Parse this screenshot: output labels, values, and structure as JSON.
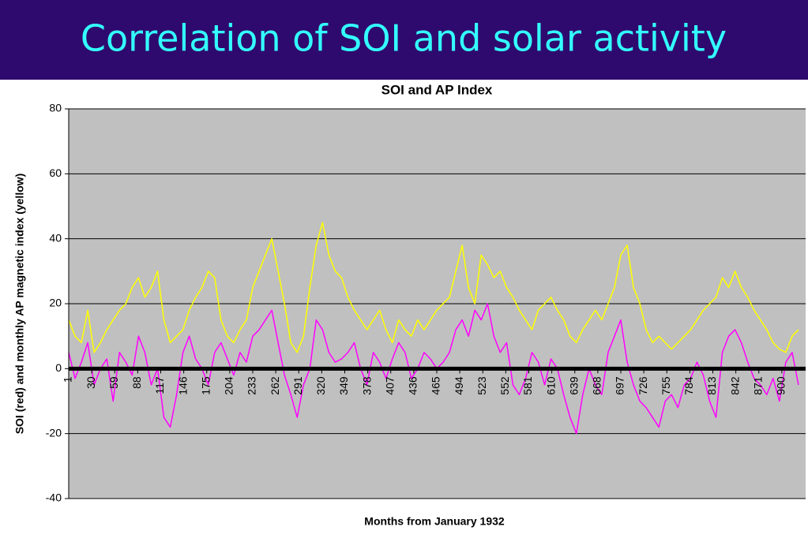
{
  "slide_title": "Correlation of SOI and solar activity",
  "chart_data": {
    "type": "line",
    "title": "SOI and AP Index",
    "x_label": "Months from January 1932",
    "y_label": "SOI (red) and monthly AP magnetic index (yellow)",
    "x": [
      1,
      9,
      17,
      25,
      33,
      41,
      49,
      57,
      65,
      73,
      81,
      89,
      97,
      105,
      113,
      121,
      129,
      137,
      145,
      153,
      161,
      169,
      177,
      185,
      193,
      201,
      209,
      217,
      225,
      233,
      241,
      249,
      257,
      265,
      273,
      281,
      289,
      297,
      305,
      313,
      321,
      329,
      337,
      345,
      353,
      361,
      369,
      377,
      385,
      393,
      401,
      409,
      417,
      425,
      433,
      441,
      449,
      457,
      465,
      473,
      481,
      489,
      497,
      505,
      513,
      521,
      529,
      537,
      545,
      553,
      561,
      569,
      577,
      585,
      593,
      601,
      609,
      617,
      625,
      633,
      641,
      649,
      657,
      665,
      673,
      681,
      689,
      697,
      705,
      713,
      721,
      729,
      737,
      745,
      753,
      761,
      769,
      777,
      785,
      793,
      801,
      809,
      817,
      825,
      833,
      841,
      849,
      857,
      865,
      873,
      881,
      889,
      897,
      905,
      913,
      921
    ],
    "xlim": [
      1,
      930
    ],
    "xticks": [
      1,
      30,
      59,
      88,
      117,
      146,
      175,
      204,
      233,
      262,
      291,
      320,
      349,
      378,
      407,
      436,
      465,
      494,
      523,
      552,
      581,
      610,
      639,
      668,
      697,
      726,
      755,
      784,
      813,
      842,
      871,
      900
    ],
    "ylim": [
      -40,
      80
    ],
    "yticks": [
      -40,
      -20,
      0,
      20,
      40,
      60,
      80
    ],
    "grid": true,
    "series": [
      {
        "name": "AP",
        "color": "#ffff00",
        "values": [
          15,
          10,
          8,
          18,
          5,
          8,
          12,
          15,
          18,
          20,
          25,
          28,
          22,
          25,
          30,
          15,
          8,
          10,
          12,
          18,
          22,
          25,
          30,
          28,
          15,
          10,
          8,
          12,
          15,
          25,
          30,
          35,
          40,
          30,
          20,
          8,
          5,
          10,
          25,
          38,
          45,
          35,
          30,
          28,
          22,
          18,
          15,
          12,
          15,
          18,
          12,
          8,
          15,
          12,
          10,
          15,
          12,
          15,
          18,
          20,
          22,
          30,
          38,
          25,
          20,
          35,
          32,
          28,
          30,
          25,
          22,
          18,
          15,
          12,
          18,
          20,
          22,
          18,
          15,
          10,
          8,
          12,
          15,
          18,
          15,
          20,
          25,
          35,
          38,
          25,
          20,
          12,
          8,
          10,
          8,
          6,
          8,
          10,
          12,
          15,
          18,
          20,
          22,
          28,
          25,
          30,
          25,
          22,
          18,
          15,
          12,
          8,
          6,
          5,
          10,
          12
        ]
      },
      {
        "name": "SOI",
        "color": "#ff00ff",
        "values": [
          5,
          -3,
          2,
          8,
          -5,
          0,
          3,
          -10,
          5,
          2,
          -2,
          10,
          5,
          -5,
          0,
          -15,
          -18,
          -8,
          5,
          10,
          3,
          0,
          -5,
          5,
          8,
          3,
          -2,
          5,
          2,
          10,
          12,
          15,
          18,
          8,
          -2,
          -8,
          -15,
          -5,
          0,
          15,
          12,
          5,
          2,
          3,
          5,
          8,
          0,
          -5,
          5,
          2,
          -3,
          3,
          8,
          5,
          -3,
          0,
          5,
          3,
          0,
          2,
          5,
          12,
          15,
          10,
          18,
          15,
          20,
          10,
          5,
          8,
          -5,
          -8,
          -3,
          5,
          2,
          -5,
          3,
          0,
          -8,
          -15,
          -20,
          -8,
          0,
          -5,
          -8,
          5,
          10,
          15,
          2,
          -5,
          -10,
          -12,
          -15,
          -18,
          -10,
          -8,
          -12,
          -5,
          -3,
          2,
          -2,
          -10,
          -15,
          5,
          10,
          12,
          8,
          2,
          -3,
          -5,
          -8,
          -3,
          -10,
          2,
          5,
          -5
        ]
      }
    ]
  }
}
